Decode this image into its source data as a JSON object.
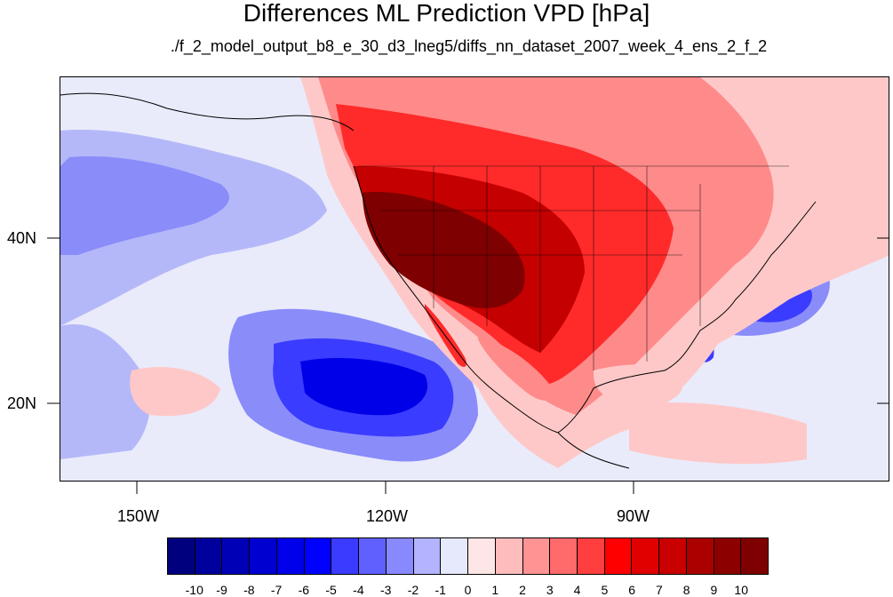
{
  "title": "Differences ML Prediction VPD [hPa]",
  "subtitle": "./f_2_model_output_b8_e_30_d3_lneg5/diffs_nn_dataset_2007_week_4_ens_2_f_2",
  "lat_labels": [
    "40N",
    "20N"
  ],
  "lon_labels": [
    "150W",
    "120W",
    "90W"
  ],
  "colorbar": {
    "tick_labels": [
      "-10",
      "-9",
      "-8",
      "-7",
      "-6",
      "-5",
      "-4",
      "-3",
      "-2",
      "-1",
      "0",
      "1",
      "2",
      "3",
      "4",
      "5",
      "6",
      "7",
      "8",
      "9",
      "10"
    ],
    "colors": [
      "#00007f",
      "#00009c",
      "#0000b6",
      "#0000d0",
      "#0000ea",
      "#0000ff",
      "#3b3bff",
      "#6060ff",
      "#8989ff",
      "#b3b3ff",
      "#e6e8fb",
      "#ffe6e6",
      "#ffbcbc",
      "#ff9393",
      "#ff6a6a",
      "#ff3f3f",
      "#ff0000",
      "#e00000",
      "#c80000",
      "#ab0000",
      "#8c0000",
      "#7f0000"
    ]
  },
  "colors": {
    "ocean_background": "#e9ebfb",
    "light_blue": "#b5b8f8",
    "mid_blue": "#8a8cfa",
    "strong_blue": "#3a3cff",
    "deep_blue": "#0000e8",
    "light_red": "#ffc8c8",
    "mid_red": "#ff8a8a",
    "strong_red": "#ff2a2a",
    "deep_red": "#c40000",
    "darkest_red": "#7f0000"
  }
}
